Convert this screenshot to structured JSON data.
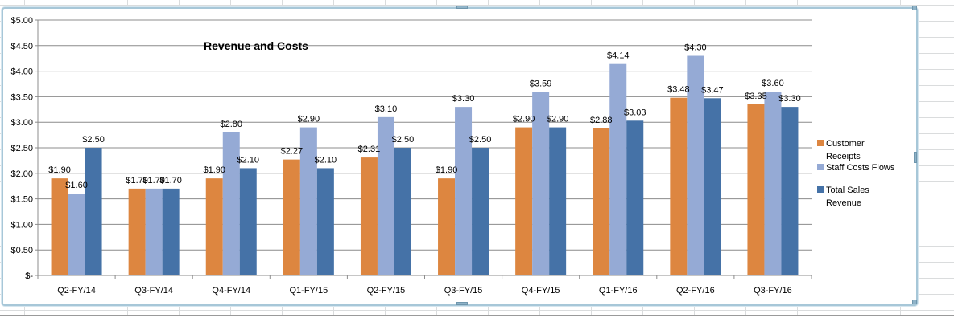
{
  "chart_data": {
    "type": "bar",
    "title": "Revenue  and Costs",
    "xlabel": "",
    "ylabel": "",
    "ylim": [
      0,
      5
    ],
    "ytick_step": 0.5,
    "ytick_labels": [
      "$-",
      "$0.50",
      "$1.00",
      "$1.50",
      "$2.00",
      "$2.50",
      "$3.00",
      "$3.50",
      "$4.00",
      "$4.50",
      "$5.00"
    ],
    "grid": true,
    "legend_position": "right",
    "categories": [
      "Q2-FY/14",
      "Q3-FY/14",
      "Q4-FY/14",
      "Q1-FY/15",
      "Q2-FY/15",
      "Q3-FY/15",
      "Q4-FY/15",
      "Q1-FY/16",
      "Q2-FY/16",
      "Q3-FY/16"
    ],
    "series": [
      {
        "name": "Customer Receipts",
        "legend_lines": [
          "Customer",
          "Receipts"
        ],
        "color": "#dd8640",
        "values": [
          1.9,
          1.7,
          1.9,
          2.27,
          2.31,
          1.9,
          2.9,
          2.88,
          3.48,
          3.35
        ],
        "labels": [
          "$1.90",
          "$1.70",
          "$1.90",
          "$2.27",
          "$2.31",
          "$1.90",
          "$2.90",
          "$2.88",
          "$3.48",
          "$3.35"
        ]
      },
      {
        "name": "Staff Costs Flows",
        "legend_lines": [
          "Staff Costs Flows"
        ],
        "color": "#95aad5",
        "values": [
          1.6,
          1.7,
          2.8,
          2.9,
          3.1,
          3.3,
          3.59,
          4.14,
          4.3,
          3.6
        ],
        "labels": [
          "$1.60",
          "$1.70",
          "$2.80",
          "$2.90",
          "$3.10",
          "$3.30",
          "$3.59",
          "$4.14",
          "$4.30",
          "$3.60"
        ]
      },
      {
        "name": "Total Sales Revenue",
        "legend_lines": [
          "Total Sales",
          "Revenue"
        ],
        "color": "#4572a7",
        "values": [
          2.5,
          1.7,
          2.1,
          2.1,
          2.5,
          2.5,
          2.9,
          3.03,
          3.47,
          3.3
        ],
        "labels": [
          "$2.50",
          "$1.70",
          "$2.10",
          "$2.10",
          "$2.50",
          "$2.50",
          "$2.90",
          "$3.03",
          "$3.47",
          "$3.30"
        ]
      }
    ]
  }
}
